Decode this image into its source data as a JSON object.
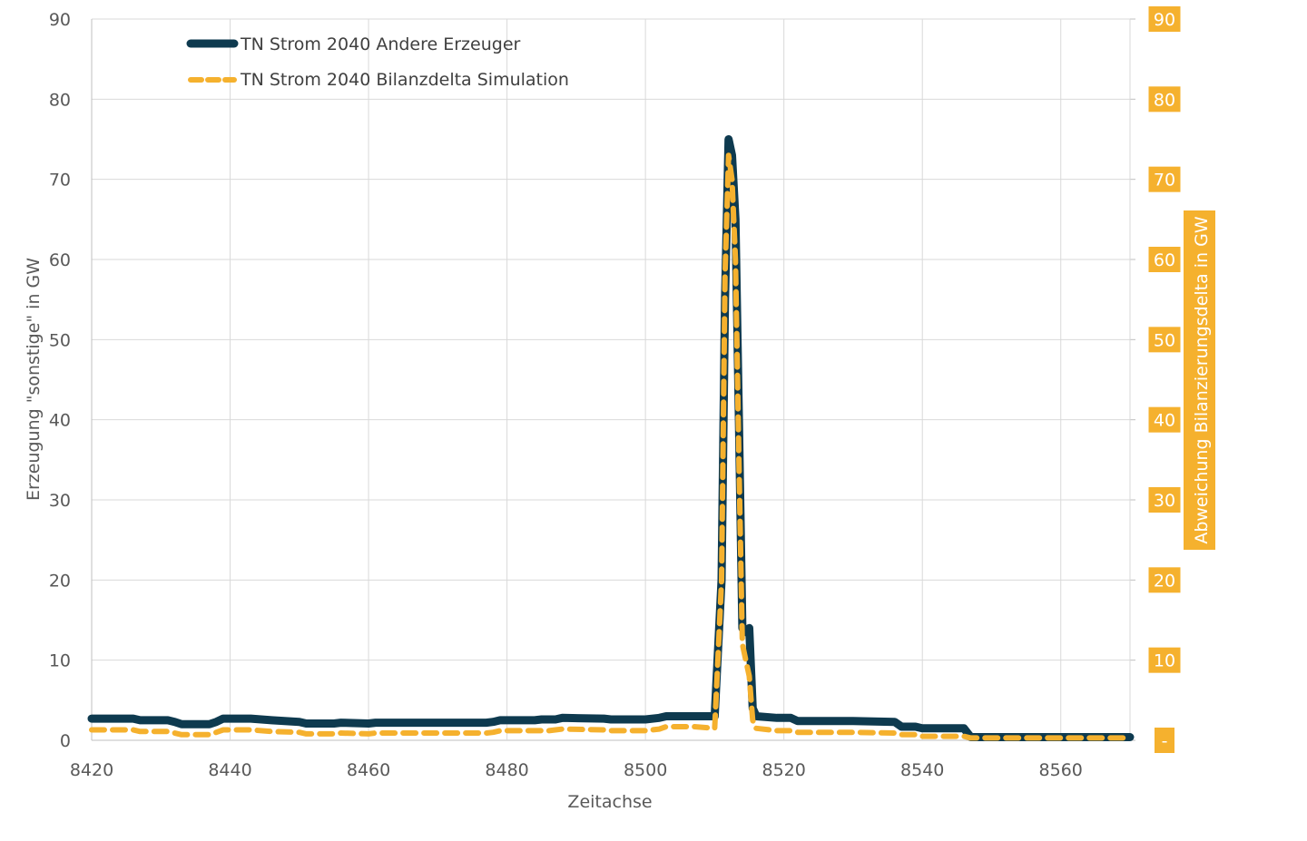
{
  "chart_data": {
    "type": "line",
    "xlabel": "Zeitachse",
    "ylabel": "Erzeugung \"sonstige\" in GW",
    "y2label": "Abweichung Bilanzierungsdelta in GW",
    "xlim": [
      8420,
      8570
    ],
    "ylim": [
      0,
      90
    ],
    "y2lim": [
      0,
      90
    ],
    "x_ticks": [
      "8420",
      "8440",
      "8460",
      "8480",
      "8500",
      "8520",
      "8540",
      "8560"
    ],
    "y_ticks": [
      "0",
      "10",
      "20",
      "30",
      "40",
      "50",
      "60",
      "70",
      "80",
      "90"
    ],
    "y2_ticks": [
      "-",
      "10",
      "20",
      "30",
      "40",
      "50",
      "60",
      "70",
      "80",
      "90"
    ],
    "grid": true,
    "legend_position": "top-left",
    "colors": {
      "andere": "#0e3a4f",
      "bilanz": "#f5b12e",
      "grid": "#d9d9d9",
      "axis_text": "#595959"
    },
    "series": [
      {
        "name": "TN Strom 2040 Andere Erzeuger",
        "axis": "left",
        "style": "solid",
        "x": [
          8420,
          8426,
          8427,
          8431,
          8432,
          8433,
          8437,
          8438,
          8439,
          8443,
          8446,
          8450,
          8451,
          8455,
          8456,
          8460,
          8461,
          8470,
          8477,
          8478,
          8479,
          8484,
          8485,
          8486,
          8487,
          8488,
          8494,
          8495,
          8500,
          8502,
          8503,
          8507,
          8510,
          8511,
          8511.5,
          8512,
          8512.5,
          8513,
          8513.5,
          8514,
          8514.5,
          8515,
          8515.5,
          8516,
          8519,
          8521,
          8522,
          8530,
          8536,
          8537,
          8539,
          8540,
          8546,
          8547,
          8570
        ],
        "y": [
          2.7,
          2.7,
          2.5,
          2.5,
          2.3,
          2.0,
          2.0,
          2.3,
          2.7,
          2.7,
          2.5,
          2.3,
          2.1,
          2.1,
          2.2,
          2.1,
          2.2,
          2.2,
          2.2,
          2.3,
          2.5,
          2.5,
          2.6,
          2.6,
          2.6,
          2.8,
          2.7,
          2.6,
          2.6,
          2.8,
          3.0,
          3.0,
          3.0,
          20.0,
          55.0,
          75.0,
          73.0,
          65.0,
          40.0,
          14.0,
          13.5,
          14.0,
          4.0,
          3.0,
          2.8,
          2.8,
          2.4,
          2.4,
          2.3,
          1.7,
          1.7,
          1.5,
          1.5,
          0.4,
          0.4
        ]
      },
      {
        "name": "TN Strom 2040 Bilanzdelta Simulation",
        "axis": "right",
        "style": "dashed",
        "x": [
          8420,
          8426,
          8427,
          8431,
          8432,
          8433,
          8437,
          8438,
          8439,
          8443,
          8446,
          8450,
          8451,
          8455,
          8456,
          8460,
          8461,
          8470,
          8477,
          8478,
          8479,
          8484,
          8485,
          8486,
          8487,
          8488,
          8494,
          8495,
          8500,
          8502,
          8503,
          8507,
          8510,
          8511,
          8511.5,
          8512,
          8512.5,
          8513,
          8513.5,
          8514,
          8514.5,
          8515,
          8515.5,
          8516,
          8519,
          8521,
          8522,
          8530,
          8536,
          8537,
          8539,
          8540,
          8546,
          8547,
          8570
        ],
        "y": [
          1.3,
          1.3,
          1.1,
          1.1,
          0.9,
          0.7,
          0.7,
          1.0,
          1.3,
          1.3,
          1.1,
          1.0,
          0.8,
          0.8,
          0.9,
          0.8,
          0.9,
          0.9,
          0.9,
          1.0,
          1.2,
          1.2,
          1.2,
          1.2,
          1.3,
          1.4,
          1.3,
          1.2,
          1.2,
          1.4,
          1.7,
          1.7,
          1.5,
          20.0,
          58.0,
          73.0,
          70.0,
          60.0,
          35.0,
          12.0,
          10.0,
          8.0,
          2.5,
          1.5,
          1.2,
          1.2,
          1.0,
          1.0,
          0.9,
          0.7,
          0.7,
          0.5,
          0.5,
          0.3,
          0.3
        ]
      }
    ]
  }
}
